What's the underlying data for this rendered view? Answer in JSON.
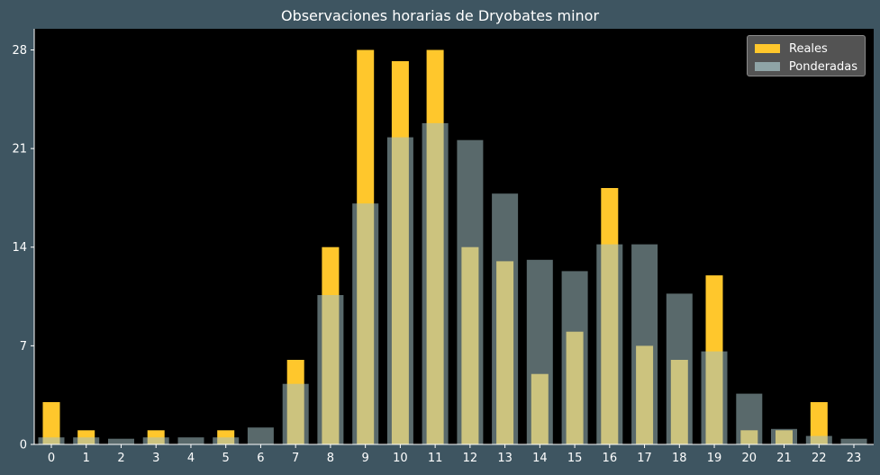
{
  "chart_data": {
    "type": "bar",
    "title": "Observaciones horarias de Dryobates minor",
    "xlabel": "",
    "ylabel": "",
    "categories": [
      "0",
      "1",
      "2",
      "3",
      "4",
      "5",
      "6",
      "7",
      "8",
      "9",
      "10",
      "11",
      "12",
      "13",
      "14",
      "15",
      "16",
      "17",
      "18",
      "19",
      "20",
      "21",
      "22",
      "23"
    ],
    "yticks": [
      "0",
      "7",
      "14",
      "21",
      "28"
    ],
    "ylim": [
      0,
      29.5
    ],
    "legend_position": "top-right",
    "grid": false,
    "series": [
      {
        "name": "Reales",
        "color": "#ffc72c",
        "values": [
          3,
          1,
          0,
          1,
          0,
          1,
          0,
          6,
          14,
          28,
          27.2,
          28,
          14,
          13,
          5,
          8,
          18.2,
          7,
          6,
          12,
          1,
          1,
          3,
          0
        ]
      },
      {
        "name": "Ponderadas",
        "color": "#a3bfc2",
        "opacity": 0.55,
        "values": [
          0.5,
          0.5,
          0.4,
          0.5,
          0.5,
          0.5,
          1.2,
          4.3,
          10.6,
          17.1,
          21.8,
          22.8,
          21.6,
          17.8,
          13.1,
          12.3,
          14.2,
          14.2,
          10.7,
          6.6,
          3.6,
          1.1,
          0.6,
          0.4
        ]
      }
    ]
  }
}
